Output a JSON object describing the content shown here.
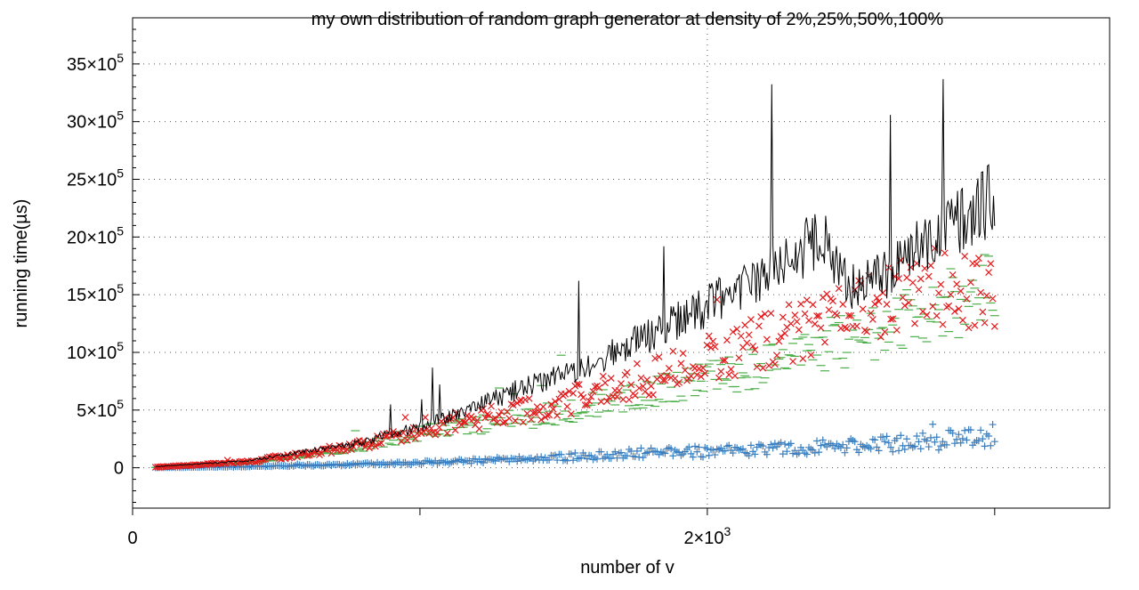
{
  "chart_data": {
    "type": "scatter",
    "title": "my own distribution of random graph generator at density of 2%,25%,50%,100%",
    "xlabel": "number of v",
    "ylabel": "running time(µs)",
    "xlim": [
      0,
      3400
    ],
    "ylim": [
      -350000,
      3900000
    ],
    "x_ticks": [
      {
        "value": 0,
        "label": "0",
        "base": "0",
        "exp": ""
      },
      {
        "value": 2000,
        "label": "2×10^3",
        "base": "2×10",
        "exp": "3"
      }
    ],
    "x_minor_ticks": [
      1000,
      3000
    ],
    "y_ticks": [
      {
        "value": 0,
        "label": "0",
        "base": "0",
        "exp": ""
      },
      {
        "value": 500000,
        "label": "5×10^5",
        "base": "5×10",
        "exp": "5"
      },
      {
        "value": 1000000,
        "label": "10×10^5",
        "base": "10×10",
        "exp": "5"
      },
      {
        "value": 1500000,
        "label": "15×10^5",
        "base": "15×10",
        "exp": "5"
      },
      {
        "value": 2000000,
        "label": "20×10^5",
        "base": "20×10",
        "exp": "5"
      },
      {
        "value": 2500000,
        "label": "25×10^5",
        "base": "25×10",
        "exp": "5"
      },
      {
        "value": 3000000,
        "label": "30×10^5",
        "base": "30×10",
        "exp": "5"
      },
      {
        "value": 3500000,
        "label": "35×10^5",
        "base": "35×10",
        "exp": "5"
      }
    ],
    "grid": true,
    "legend": "none",
    "series": [
      {
        "style": "plus",
        "color": "#3a7ebf",
        "x": [
          80,
          400,
          800,
          1200,
          1500,
          1800,
          1900,
          2000,
          2100,
          2300,
          2500,
          2700,
          2900,
          3000
        ],
        "y": [
          2000,
          10000,
          30000,
          60000,
          90000,
          130000,
          150000,
          130000,
          150000,
          170000,
          190000,
          220000,
          250000,
          280000
        ]
      },
      {
        "style": "hline",
        "color": "#4daf4a",
        "x": [
          80,
          400,
          800,
          1000,
          1200,
          1400,
          1600,
          1800,
          2000,
          2200,
          2400,
          2600,
          2800,
          3000
        ],
        "y": [
          3000,
          40000,
          180000,
          300000,
          370000,
          440000,
          540000,
          650000,
          760000,
          900000,
          1050000,
          1200000,
          1380000,
          1550000
        ]
      },
      {
        "style": "cross",
        "color": "#e41a1c",
        "x": [
          80,
          400,
          800,
          1000,
          1200,
          1400,
          1600,
          1800,
          2000,
          2200,
          2400,
          2600,
          2800,
          3000
        ],
        "y": [
          5000,
          50000,
          200000,
          330000,
          420000,
          520000,
          640000,
          790000,
          940000,
          1100000,
          1260000,
          1420000,
          1580000,
          1500000
        ]
      },
      {
        "style": "line",
        "color": "#000000",
        "x": [
          80,
          400,
          800,
          900,
          1000,
          1200,
          1400,
          1600,
          1800,
          2000,
          2200,
          2400,
          2500,
          2600,
          2700,
          2800,
          2900,
          3000
        ],
        "y": [
          10000,
          60000,
          220000,
          300000,
          350000,
          540000,
          730000,
          920000,
          1150000,
          1400000,
          1700000,
          2000000,
          1600000,
          1650000,
          1850000,
          2000000,
          2150000,
          2350000
        ]
      }
    ]
  }
}
